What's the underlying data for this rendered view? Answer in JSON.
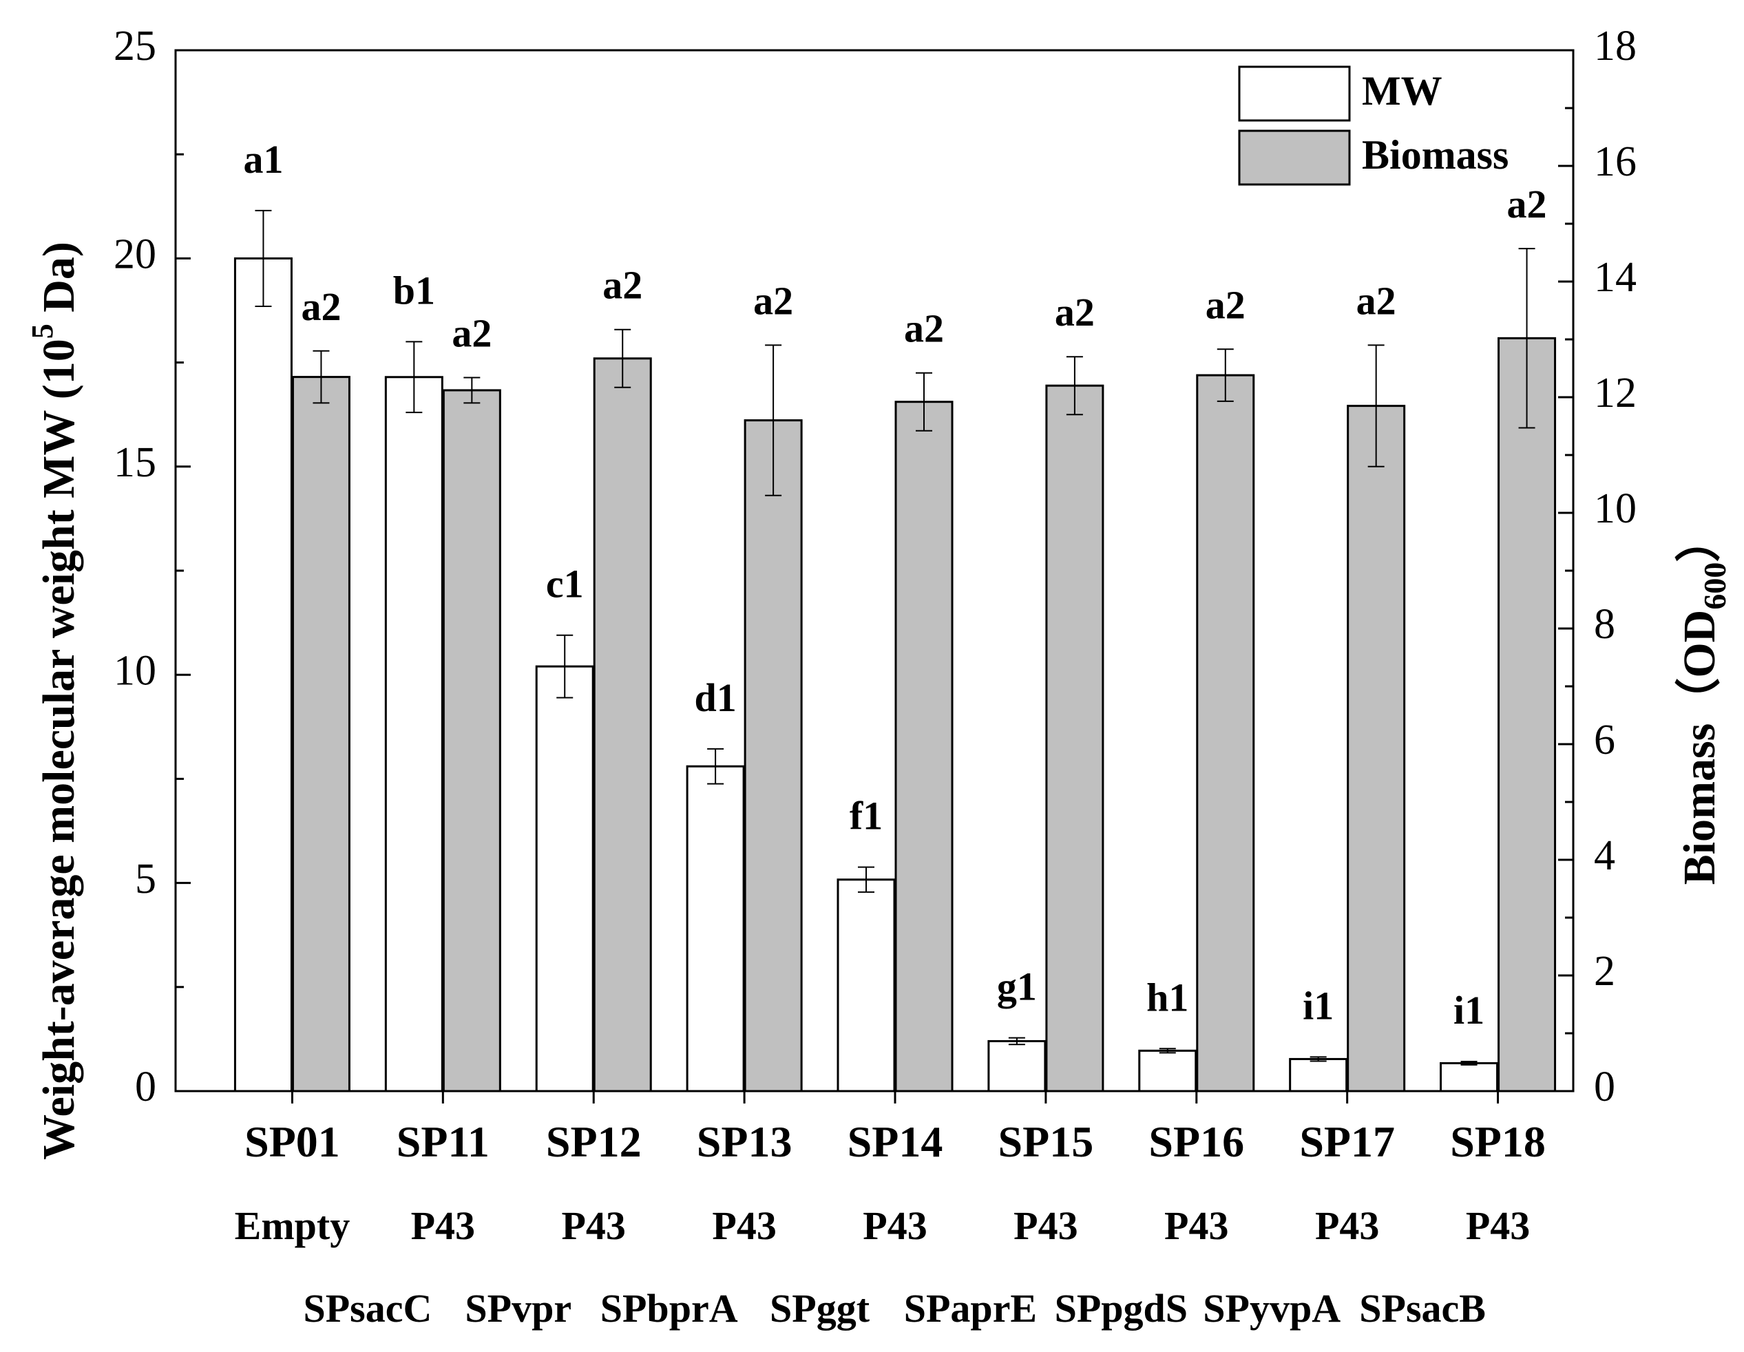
{
  "chart_data": {
    "type": "bar",
    "categories": [
      "SP01",
      "SP11",
      "SP12",
      "SP13",
      "SP14",
      "SP15",
      "SP16",
      "SP17",
      "SP18"
    ],
    "promoters": [
      "Empty",
      "P43",
      "P43",
      "P43",
      "P43",
      "P43",
      "P43",
      "P43",
      "P43"
    ],
    "signal_peptides": [
      "SPsacC",
      "SPvpr",
      "SPbprA",
      "SPggt",
      "SPaprE",
      "SPpgdS",
      "SPyvpA",
      "SPsacB"
    ],
    "series": [
      {
        "name": "MW",
        "axis": "left",
        "color": "#ffffff",
        "values": [
          20.0,
          17.15,
          10.2,
          7.8,
          5.08,
          1.2,
          0.97,
          0.77,
          0.67
        ],
        "errors": [
          1.15,
          0.85,
          0.75,
          0.42,
          0.3,
          0.08,
          0.05,
          0.05,
          0.04
        ],
        "labels": [
          "a1",
          "b1",
          "c1",
          "d1",
          "f1",
          "g1",
          "h1",
          "i1",
          "i1"
        ]
      },
      {
        "name": "Biomass",
        "axis": "right",
        "color": "#c0c0c0",
        "values": [
          12.35,
          12.12,
          12.67,
          11.6,
          11.92,
          12.2,
          12.38,
          11.85,
          13.02
        ],
        "errors": [
          0.45,
          0.22,
          0.5,
          1.3,
          0.5,
          0.5,
          0.45,
          1.05,
          1.55
        ],
        "labels": [
          "a2",
          "a2",
          "a2",
          "a2",
          "a2",
          "a2",
          "a2",
          "a2",
          "a2"
        ]
      }
    ],
    "ylabel_left": "Weight-average molecular weight MW (10",
    "ylabel_left_sup": "5",
    "ylabel_left_unit": " Da)",
    "ylabel_right": "Biomass（OD",
    "ylabel_right_sub": "600",
    "ylabel_right_close": "）",
    "ylim_left": [
      0,
      25
    ],
    "ylim_right": [
      0,
      18
    ],
    "yticks_left": [
      0,
      5,
      10,
      15,
      20,
      25
    ],
    "yticks_right": [
      0,
      2,
      4,
      6,
      8,
      10,
      12,
      14,
      16,
      18
    ],
    "legend": [
      "MW",
      "Biomass"
    ],
    "legend_position": "top-right",
    "grid": false
  }
}
